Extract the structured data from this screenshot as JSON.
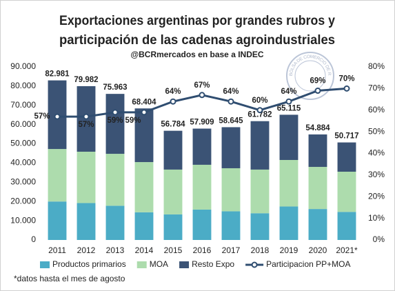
{
  "chart_data": {
    "type": "bar",
    "title": [
      "Exportaciones argentinas por grandes rubros y",
      "participación de las cadenas agroindustriales"
    ],
    "subtitle": "@BCRmercados en base a INDEC",
    "logo_text": "BOLSA DE COMERCIO DE ROSARIO",
    "note": "*datos hasta el mes de agosto",
    "categories": [
      "2011",
      "2012",
      "2013",
      "2014",
      "2015",
      "2016",
      "2017",
      "2018",
      "2019",
      "2020",
      "2021*"
    ],
    "series": [
      {
        "name": "Productos primarios",
        "color": "#4bacc6",
        "values": [
          20000,
          19200,
          17800,
          14400,
          13300,
          15800,
          14900,
          13900,
          17400,
          16100,
          14600
        ]
      },
      {
        "name": "MOA",
        "color": "#addcad",
        "values": [
          27300,
          26700,
          27000,
          26100,
          23300,
          23300,
          22400,
          22700,
          24200,
          21900,
          20900
        ]
      },
      {
        "name": "Resto Expo",
        "color": "#3b5375",
        "values": [
          35681,
          34082,
          31163,
          27904,
          20184,
          18809,
          21345,
          25182,
          23515,
          16884,
          15217
        ]
      },
      {
        "name": "Participacion PP+MOA",
        "color": "#2f4d70",
        "type": "line",
        "axis": "y2",
        "values": [
          57,
          57,
          59,
          59,
          64,
          67,
          64,
          60,
          64,
          69,
          70
        ],
        "value_labels": [
          "57%",
          "57%",
          "59%",
          "59%",
          "64%",
          "67%",
          "64%",
          "60%",
          "64%",
          "69%",
          "70%"
        ]
      }
    ],
    "totals": [
      82981,
      79982,
      75963,
      68404,
      56784,
      57909,
      58645,
      61782,
      65115,
      54884,
      50717
    ],
    "total_labels": [
      "82.981",
      "79.982",
      "75.963",
      "68.404",
      "56.784",
      "57.909",
      "58.645",
      "61.782",
      "65.115",
      "54.884",
      "50.717"
    ],
    "ylim": [
      0,
      90000
    ],
    "yticks": [
      0,
      {
        "value": 10000,
        "label": "10.000"
      },
      {
        "value": 20000,
        "label": "20.000"
      },
      {
        "value": 30000,
        "label": "30.000"
      },
      {
        "value": 40000,
        "label": "40.000"
      },
      {
        "value": 50000,
        "label": "50.000"
      },
      {
        "value": 60000,
        "label": "60.000"
      },
      {
        "value": 70000,
        "label": "70.000"
      },
      {
        "value": 80000,
        "label": "80.000"
      },
      {
        "value": 90000,
        "label": "90.000"
      }
    ],
    "y2lim": [
      0,
      80
    ],
    "y2ticks": [
      {
        "value": 0,
        "label": "0%"
      },
      {
        "value": 10,
        "label": "10%"
      },
      {
        "value": 20,
        "label": "20%"
      },
      {
        "value": 30,
        "label": "30%"
      },
      {
        "value": 40,
        "label": "40%"
      },
      {
        "value": 50,
        "label": "50%"
      },
      {
        "value": 60,
        "label": "60%"
      },
      {
        "value": 70,
        "label": "70%"
      },
      {
        "value": 80,
        "label": "80%"
      }
    ],
    "grid": false,
    "legend": "bottom"
  }
}
